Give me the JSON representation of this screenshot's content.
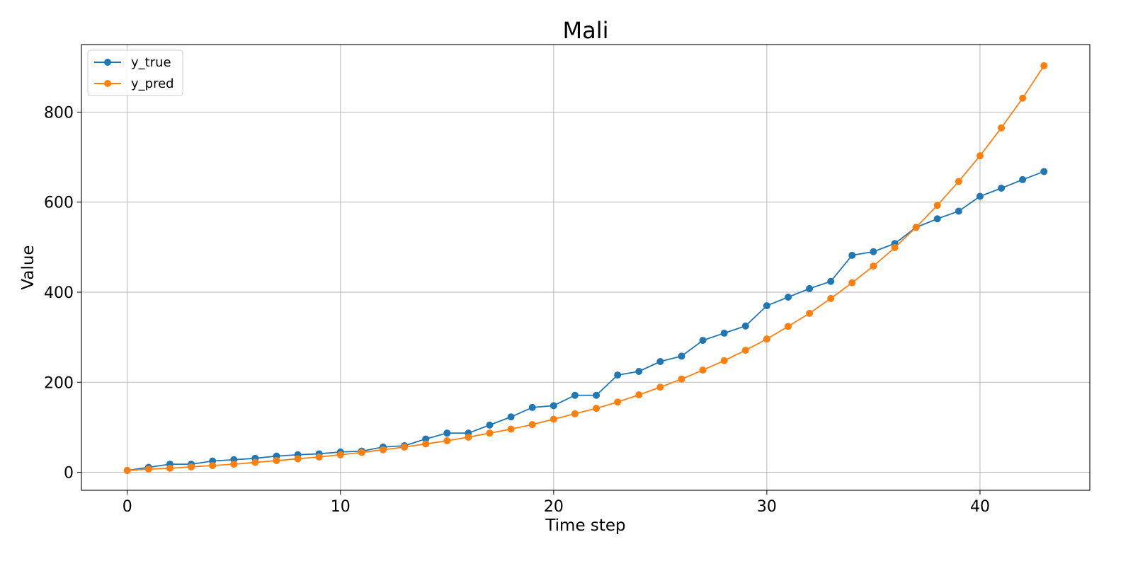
{
  "chart_data": {
    "type": "line",
    "title": "Mali",
    "xlabel": "Time step",
    "ylabel": "Value",
    "xlim": [
      -2.15,
      45.15
    ],
    "ylim": [
      -40,
      950
    ],
    "xticks": [
      0,
      10,
      20,
      30,
      40
    ],
    "yticks": [
      0,
      200,
      400,
      600,
      800
    ],
    "grid": true,
    "legend_position": "top-left",
    "x": [
      0,
      1,
      2,
      3,
      4,
      5,
      6,
      7,
      8,
      9,
      10,
      11,
      12,
      13,
      14,
      15,
      16,
      17,
      18,
      19,
      20,
      21,
      22,
      23,
      24,
      25,
      26,
      27,
      28,
      29,
      30,
      31,
      32,
      33,
      34,
      35,
      36,
      37,
      38,
      39,
      40,
      41,
      42,
      43
    ],
    "series": [
      {
        "name": "y_true",
        "color": "#1f77b4",
        "marker": "circle",
        "values": [
          4,
          11,
          18,
          18,
          25,
          28,
          31,
          36,
          39,
          41,
          45,
          47,
          56,
          59,
          74,
          87,
          87,
          105,
          123,
          144,
          148,
          171,
          171,
          216,
          224,
          246,
          258,
          293,
          309,
          325,
          370,
          389,
          408,
          424,
          482,
          490,
          508,
          544,
          563,
          580,
          613,
          631,
          650,
          668
        ]
      },
      {
        "name": "y_pred",
        "color": "#ff7f0e",
        "marker": "circle",
        "values": [
          4,
          7,
          9,
          12,
          15,
          18,
          22,
          26,
          30,
          34,
          39,
          44,
          50,
          56,
          63,
          70,
          78,
          87,
          96,
          106,
          118,
          130,
          142,
          156,
          172,
          189,
          207,
          227,
          248,
          271,
          296,
          324,
          353,
          386,
          421,
          458,
          499,
          544,
          593,
          646,
          703,
          765,
          831,
          903
        ]
      }
    ]
  }
}
